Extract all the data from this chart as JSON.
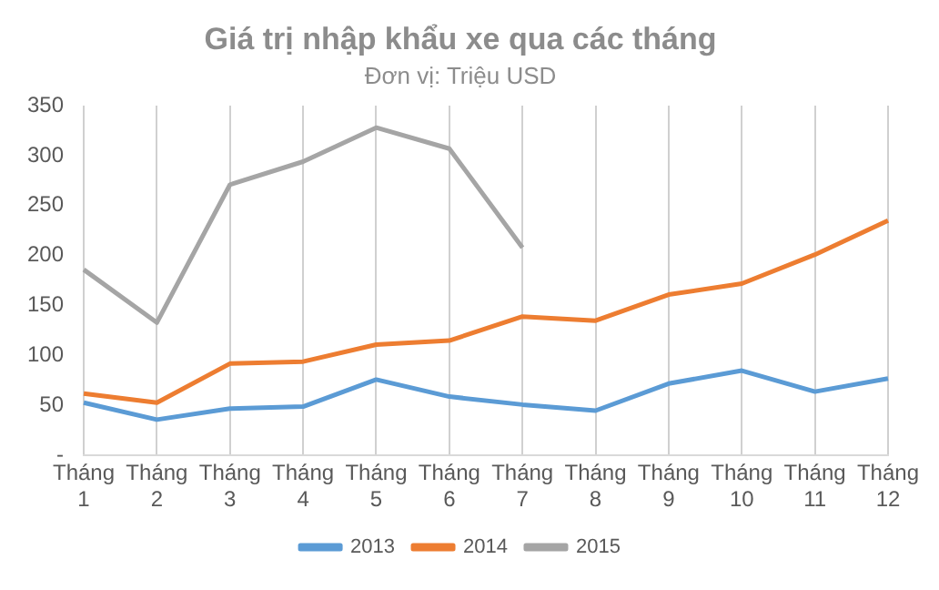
{
  "chart_data": {
    "type": "line",
    "title": "Giá trị nhập khẩu xe qua các tháng",
    "subtitle": "Đơn vị: Triệu USD",
    "categories": [
      "Tháng 1",
      "Tháng 2",
      "Tháng 3",
      "Tháng 4",
      "Tháng 5",
      "Tháng 6",
      "Tháng 7",
      "Tháng 8",
      "Tháng 9",
      "Tháng 10",
      "Tháng 11",
      "Tháng 12"
    ],
    "series": [
      {
        "name": "2013",
        "color": "#5b9bd5",
        "values": [
          53,
          36,
          47,
          49,
          76,
          59,
          51,
          45,
          72,
          85,
          64,
          77
        ]
      },
      {
        "name": "2014",
        "color": "#ed7d31",
        "values": [
          62,
          53,
          92,
          94,
          111,
          115,
          139,
          135,
          161,
          172,
          201,
          235
        ]
      },
      {
        "name": "2015",
        "color": "#a5a5a5",
        "values": [
          186,
          133,
          271,
          294,
          328,
          307,
          208,
          null,
          null,
          null,
          null,
          null
        ]
      }
    ],
    "ylim": [
      0,
      350
    ],
    "yticks": [
      {
        "value": 0,
        "label": "-"
      },
      50,
      100,
      150,
      200,
      250,
      300,
      350
    ],
    "grid": "x",
    "legend": "bottom",
    "marker": "none",
    "line_style": "solid"
  }
}
